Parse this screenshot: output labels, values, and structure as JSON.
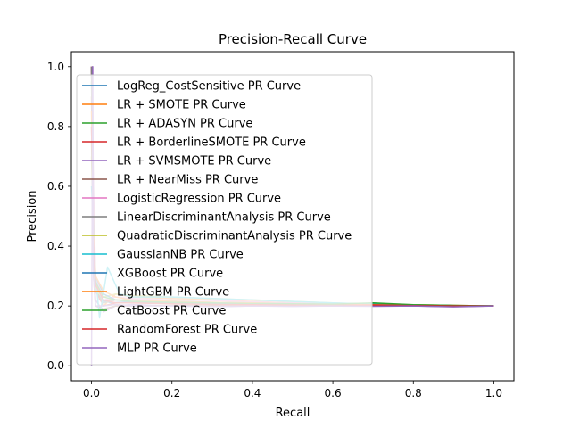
{
  "chart_data": {
    "type": "line",
    "title": "Precision-Recall Curve",
    "xlabel": "Recall",
    "ylabel": "Precision",
    "xlim": [
      -0.05,
      1.05
    ],
    "ylim": [
      -0.05,
      1.05
    ],
    "xticks": [
      "0.0",
      "0.2",
      "0.4",
      "0.6",
      "0.8",
      "1.0"
    ],
    "yticks": [
      "0.0",
      "0.2",
      "0.4",
      "0.6",
      "0.8",
      "1.0"
    ],
    "grid": false,
    "legend_position": "upper-left",
    "series": [
      {
        "name": "LogReg_CostSensitive PR Curve",
        "color": "#1f77b4",
        "x": [
          0,
          0.005,
          0.01,
          0.02,
          0.05,
          0.1,
          0.2,
          0.3,
          0.4,
          0.5,
          0.6,
          0.7,
          0.8,
          0.9,
          1.0
        ],
        "y": [
          1.0,
          0.55,
          0.3,
          0.22,
          0.21,
          0.215,
          0.21,
          0.205,
          0.208,
          0.205,
          0.203,
          0.204,
          0.202,
          0.201,
          0.2
        ]
      },
      {
        "name": "LR + SMOTE PR Curve",
        "color": "#ff7f0e",
        "x": [
          0,
          0.005,
          0.01,
          0.03,
          0.06,
          0.1,
          0.2,
          0.3,
          0.4,
          0.5,
          0.6,
          0.7,
          0.8,
          0.9,
          1.0
        ],
        "y": [
          1.0,
          0.5,
          0.28,
          0.2,
          0.24,
          0.23,
          0.225,
          0.22,
          0.215,
          0.21,
          0.207,
          0.205,
          0.204,
          0.202,
          0.2
        ]
      },
      {
        "name": "LR + ADASYN PR Curve",
        "color": "#2ca02c",
        "x": [
          0,
          0.005,
          0.01,
          0.03,
          0.06,
          0.1,
          0.2,
          0.3,
          0.4,
          0.5,
          0.6,
          0.7,
          0.8,
          0.9,
          1.0
        ],
        "y": [
          0.95,
          0.45,
          0.26,
          0.21,
          0.22,
          0.22,
          0.215,
          0.212,
          0.21,
          0.208,
          0.206,
          0.207,
          0.203,
          0.201,
          0.2
        ]
      },
      {
        "name": "LR + BorderlineSMOTE PR Curve",
        "color": "#d62728",
        "x": [
          0,
          0.005,
          0.01,
          0.03,
          0.06,
          0.1,
          0.2,
          0.3,
          0.4,
          0.5,
          0.6,
          0.7,
          0.8,
          0.9,
          1.0
        ],
        "y": [
          0.9,
          0.4,
          0.25,
          0.2,
          0.21,
          0.21,
          0.208,
          0.205,
          0.206,
          0.204,
          0.203,
          0.205,
          0.202,
          0.201,
          0.2
        ]
      },
      {
        "name": "LR + SVMSMOTE PR Curve",
        "color": "#9467bd",
        "x": [
          0,
          0.005,
          0.01,
          0.03,
          0.06,
          0.1,
          0.2,
          0.3,
          0.4,
          0.5,
          0.6,
          0.7,
          0.8,
          0.9,
          1.0
        ],
        "y": [
          1.0,
          0.35,
          0.22,
          0.18,
          0.2,
          0.205,
          0.2,
          0.198,
          0.2,
          0.199,
          0.2,
          0.201,
          0.2,
          0.198,
          0.2
        ]
      },
      {
        "name": "LR + NearMiss PR Curve",
        "color": "#8c564b",
        "x": [
          0,
          0.005,
          0.01,
          0.03,
          0.06,
          0.1,
          0.2,
          0.3,
          0.4,
          0.5,
          0.6,
          0.7,
          0.8,
          0.9,
          1.0
        ],
        "y": [
          1.0,
          0.3,
          0.2,
          0.19,
          0.2,
          0.2,
          0.202,
          0.2,
          0.2,
          0.2,
          0.2,
          0.2,
          0.2,
          0.2,
          0.2
        ]
      },
      {
        "name": "LogisticRegression PR Curve",
        "color": "#e377c2",
        "x": [
          0,
          0.005,
          0.01,
          0.03,
          0.06,
          0.1,
          0.2,
          0.3,
          0.4,
          0.5,
          0.6,
          0.7,
          0.8,
          0.9,
          1.0
        ],
        "y": [
          1.0,
          0.6,
          0.3,
          0.22,
          0.23,
          0.225,
          0.22,
          0.218,
          0.214,
          0.21,
          0.207,
          0.205,
          0.203,
          0.201,
          0.2
        ]
      },
      {
        "name": "LinearDiscriminantAnalysis PR Curve",
        "color": "#7f7f7f",
        "x": [
          0,
          0.005,
          0.01,
          0.03,
          0.06,
          0.1,
          0.2,
          0.3,
          0.4,
          0.5,
          0.6,
          0.7,
          0.8,
          0.9,
          1.0
        ],
        "y": [
          1.0,
          0.5,
          0.27,
          0.21,
          0.22,
          0.22,
          0.216,
          0.212,
          0.21,
          0.208,
          0.206,
          0.204,
          0.203,
          0.201,
          0.2
        ]
      },
      {
        "name": "QuadraticDiscriminantAnalysis PR Curve",
        "color": "#bcbd22",
        "x": [
          0,
          0.005,
          0.01,
          0.03,
          0.06,
          0.1,
          0.2,
          0.3,
          0.4,
          0.5,
          0.6,
          0.7,
          0.8,
          0.9,
          1.0
        ],
        "y": [
          0.7,
          0.4,
          0.25,
          0.23,
          0.24,
          0.235,
          0.23,
          0.225,
          0.22,
          0.215,
          0.21,
          0.206,
          0.203,
          0.201,
          0.2
        ]
      },
      {
        "name": "GaussianNB PR Curve",
        "color": "#17becf",
        "x": [
          0,
          0.005,
          0.01,
          0.02,
          0.04,
          0.07,
          0.1,
          0.2,
          0.3,
          0.4,
          0.5,
          0.6,
          0.7,
          0.8,
          0.9,
          1.0
        ],
        "y": [
          0.6,
          0.45,
          0.3,
          0.16,
          0.33,
          0.24,
          0.23,
          0.23,
          0.225,
          0.22,
          0.215,
          0.21,
          0.206,
          0.203,
          0.201,
          0.2
        ]
      },
      {
        "name": "XGBoost PR Curve",
        "color": "#1f77b4",
        "x": [
          0,
          0.005,
          0.01,
          0.03,
          0.06,
          0.1,
          0.2,
          0.3,
          0.4,
          0.5,
          0.6,
          0.7,
          0.8,
          0.9,
          1.0
        ],
        "y": [
          0.8,
          0.4,
          0.3,
          0.24,
          0.22,
          0.215,
          0.21,
          0.208,
          0.206,
          0.205,
          0.204,
          0.203,
          0.202,
          0.201,
          0.2
        ]
      },
      {
        "name": "LightGBM PR Curve",
        "color": "#ff7f0e",
        "x": [
          0,
          0.005,
          0.01,
          0.03,
          0.06,
          0.1,
          0.2,
          0.3,
          0.4,
          0.5,
          0.6,
          0.7,
          0.8,
          0.9,
          1.0
        ],
        "y": [
          0.85,
          0.45,
          0.3,
          0.25,
          0.23,
          0.22,
          0.215,
          0.212,
          0.21,
          0.207,
          0.205,
          0.204,
          0.202,
          0.201,
          0.2
        ]
      },
      {
        "name": "CatBoost PR Curve",
        "color": "#2ca02c",
        "x": [
          0,
          0.005,
          0.01,
          0.03,
          0.06,
          0.1,
          0.2,
          0.3,
          0.4,
          0.5,
          0.6,
          0.7,
          0.8,
          0.9,
          1.0
        ],
        "y": [
          0.75,
          0.4,
          0.28,
          0.23,
          0.22,
          0.215,
          0.212,
          0.21,
          0.208,
          0.207,
          0.206,
          0.21,
          0.204,
          0.202,
          0.2
        ]
      },
      {
        "name": "RandomForest PR Curve",
        "color": "#d62728",
        "x": [
          0,
          0.005,
          0.01,
          0.03,
          0.06,
          0.1,
          0.2,
          0.3,
          0.4,
          0.5,
          0.6,
          0.7,
          0.8,
          0.9,
          1.0
        ],
        "y": [
          0.8,
          0.42,
          0.27,
          0.22,
          0.21,
          0.21,
          0.207,
          0.205,
          0.204,
          0.203,
          0.202,
          0.203,
          0.201,
          0.2,
          0.2
        ]
      },
      {
        "name": "MLP PR Curve",
        "color": "#9467bd",
        "x": [
          0,
          0.003,
          0.005,
          0.01,
          0.03,
          0.06,
          0.1,
          0.2,
          0.3,
          0.4,
          0.5,
          0.6,
          0.7,
          0.8,
          0.9,
          1.0
        ],
        "y": [
          0.0,
          1.0,
          0.3,
          0.2,
          0.2,
          0.205,
          0.2,
          0.2,
          0.198,
          0.2,
          0.199,
          0.2,
          0.199,
          0.2,
          0.197,
          0.2
        ]
      }
    ]
  }
}
